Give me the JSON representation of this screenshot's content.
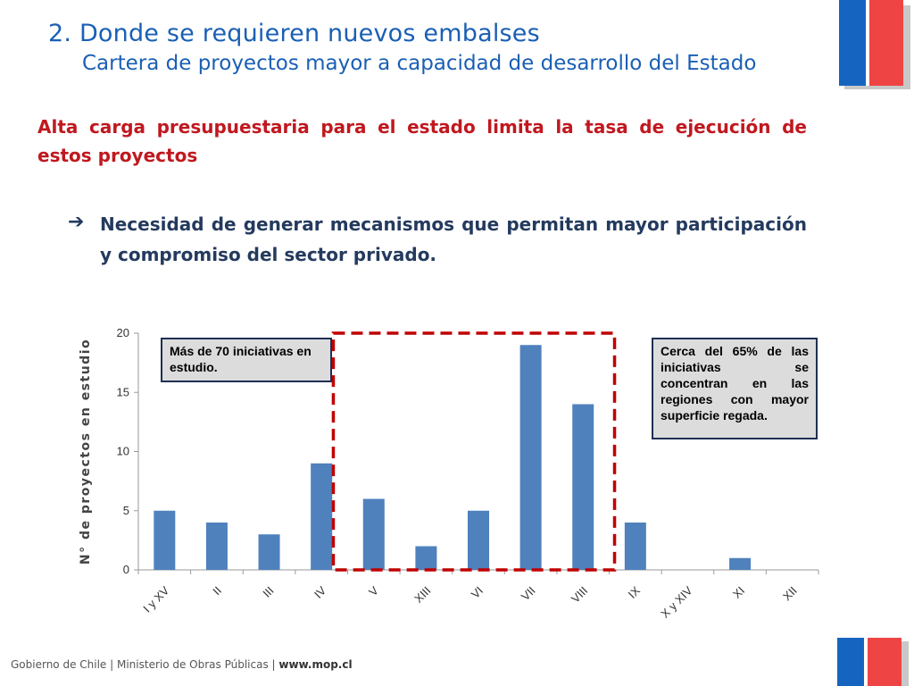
{
  "header": {
    "title": "2. Donde se requieren nuevos embalses",
    "subtitle": "Cartera de proyectos mayor a capacidad de desarrollo del Estado"
  },
  "headline": "Alta carga presupuestaria para el estado limita la tasa de ejecución de estos proyectos",
  "bullet": {
    "arrow": "➔",
    "text": "Necesidad de generar mecanismos que permitan mayor participación y compromiso del sector privado."
  },
  "callouts": {
    "left": "Más de 70 iniciativas en estudio.",
    "right": "Cerca del 65% de las iniciativas se concentran en las regiones con mayor superficie regada."
  },
  "footer": {
    "prefix": "Gobierno de Chile | Ministerio de Obras Públicas | ",
    "url": "www.mop.cl"
  },
  "colors": {
    "bar": "#4f81bd",
    "highlight_box": "#c00000",
    "title": "#1a5fb4",
    "headline": "#c0181f",
    "flag_blue": "#1565c0",
    "flag_red": "#ef4444"
  },
  "chart_data": {
    "type": "bar",
    "categories": [
      "I y XV",
      "II",
      "III",
      "IV",
      "V",
      "XIII",
      "VI",
      "VII",
      "VIII",
      "IX",
      "X y XIV",
      "XI",
      "XII"
    ],
    "values": [
      5,
      4,
      3,
      9,
      6,
      2,
      5,
      19,
      14,
      4,
      0,
      1,
      0
    ],
    "ylabel": "N° de proyectos en estudio",
    "ylim": [
      0,
      20
    ],
    "yticks": [
      0,
      5,
      10,
      15,
      20
    ],
    "grid": false,
    "highlight": {
      "from_category": "V",
      "to_category": "VIII",
      "style": "dashed-box"
    }
  }
}
